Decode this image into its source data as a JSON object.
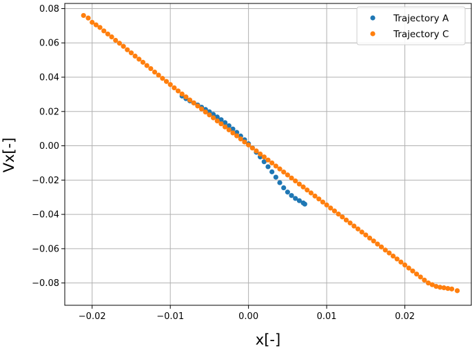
{
  "chart_data": {
    "type": "scatter",
    "xlabel": "x[-]",
    "ylabel": "Vx[-]",
    "xlim": [
      -0.0235,
      0.0285
    ],
    "ylim": [
      -0.093,
      0.083
    ],
    "x_ticks": [
      -0.02,
      -0.01,
      0.0,
      0.01,
      0.02
    ],
    "x_tick_labels": [
      "−0.02",
      "−0.01",
      "0.00",
      "0.01",
      "0.02"
    ],
    "y_ticks": [
      -0.08,
      -0.06,
      -0.04,
      -0.02,
      0.0,
      0.02,
      0.04,
      0.06,
      0.08
    ],
    "y_tick_labels": [
      "−0.08",
      "−0.06",
      "−0.04",
      "−0.02",
      "0.00",
      "0.02",
      "0.04",
      "0.06",
      "0.08"
    ],
    "grid": true,
    "legend_position": "top-right",
    "series": [
      {
        "name": "Trajectory A",
        "color": "#1f77b4",
        "points": [
          [
            -0.0085,
            0.029
          ],
          [
            -0.008,
            0.0275
          ],
          [
            -0.0075,
            0.0262
          ],
          [
            -0.007,
            0.025
          ],
          [
            -0.0065,
            0.0238
          ],
          [
            -0.006,
            0.0225
          ],
          [
            -0.0055,
            0.0212
          ],
          [
            -0.005,
            0.0198
          ],
          [
            -0.0045,
            0.0183
          ],
          [
            -0.004,
            0.0168
          ],
          [
            -0.0035,
            0.0152
          ],
          [
            -0.003,
            0.0135
          ],
          [
            -0.0025,
            0.0117
          ],
          [
            -0.002,
            0.0098
          ],
          [
            -0.0015,
            0.0078
          ],
          [
            -0.001,
            0.0057
          ],
          [
            -0.0005,
            0.0035
          ],
          [
            0.0,
            0.0012
          ],
          [
            0.0005,
            -0.0012
          ],
          [
            0.001,
            -0.0038
          ],
          [
            0.0015,
            -0.0065
          ],
          [
            0.002,
            -0.0093
          ],
          [
            0.0025,
            -0.0122
          ],
          [
            0.003,
            -0.0152
          ],
          [
            0.0035,
            -0.0183
          ],
          [
            0.004,
            -0.0215
          ],
          [
            0.0045,
            -0.0245
          ],
          [
            0.005,
            -0.027
          ],
          [
            0.0055,
            -0.029
          ],
          [
            0.006,
            -0.0307
          ],
          [
            0.0065,
            -0.032
          ],
          [
            0.007,
            -0.0333
          ],
          [
            0.0072,
            -0.034
          ]
        ]
      },
      {
        "name": "Trajectory C",
        "color": "#ff7f0e",
        "points": [
          [
            -0.0211,
            0.076
          ],
          [
            -0.0205,
            0.0745
          ],
          [
            -0.02,
            0.072
          ],
          [
            -0.0195,
            0.0705
          ],
          [
            -0.019,
            0.069
          ],
          [
            -0.0185,
            0.067
          ],
          [
            -0.018,
            0.0652
          ],
          [
            -0.0175,
            0.0635
          ],
          [
            -0.017,
            0.0615
          ],
          [
            -0.0165,
            0.0598
          ],
          [
            -0.016,
            0.058
          ],
          [
            -0.0155,
            0.056
          ],
          [
            -0.015,
            0.0542
          ],
          [
            -0.0145,
            0.0523
          ],
          [
            -0.014,
            0.0505
          ],
          [
            -0.0135,
            0.0487
          ],
          [
            -0.013,
            0.0468
          ],
          [
            -0.0125,
            0.045
          ],
          [
            -0.012,
            0.043
          ],
          [
            -0.0115,
            0.0412
          ],
          [
            -0.011,
            0.0393
          ],
          [
            -0.0105,
            0.0375
          ],
          [
            -0.01,
            0.0357
          ],
          [
            -0.0095,
            0.0338
          ],
          [
            -0.009,
            0.032
          ],
          [
            -0.0085,
            0.0302
          ],
          [
            -0.008,
            0.0285
          ],
          [
            -0.0075,
            0.0267
          ],
          [
            -0.007,
            0.025
          ],
          [
            -0.0065,
            0.0232
          ],
          [
            -0.006,
            0.0215
          ],
          [
            -0.0055,
            0.0197
          ],
          [
            -0.005,
            0.018
          ],
          [
            -0.0045,
            0.0163
          ],
          [
            -0.004,
            0.0145
          ],
          [
            -0.0035,
            0.0128
          ],
          [
            -0.003,
            0.011
          ],
          [
            -0.0025,
            0.0093
          ],
          [
            -0.002,
            0.0075
          ],
          [
            -0.0015,
            0.0058
          ],
          [
            -0.001,
            0.004
          ],
          [
            -0.0005,
            0.0022
          ],
          [
            0.0,
            0.0005
          ],
          [
            0.0005,
            -0.0013
          ],
          [
            0.001,
            -0.003
          ],
          [
            0.0015,
            -0.0048
          ],
          [
            0.002,
            -0.0065
          ],
          [
            0.0025,
            -0.0083
          ],
          [
            0.003,
            -0.01
          ],
          [
            0.0035,
            -0.0118
          ],
          [
            0.004,
            -0.0135
          ],
          [
            0.0045,
            -0.0153
          ],
          [
            0.005,
            -0.017
          ],
          [
            0.0055,
            -0.0188
          ],
          [
            0.006,
            -0.0205
          ],
          [
            0.0065,
            -0.0223
          ],
          [
            0.007,
            -0.024
          ],
          [
            0.0075,
            -0.0258
          ],
          [
            0.008,
            -0.0275
          ],
          [
            0.0085,
            -0.0293
          ],
          [
            0.009,
            -0.031
          ],
          [
            0.0095,
            -0.0328
          ],
          [
            0.01,
            -0.0345
          ],
          [
            0.0105,
            -0.0363
          ],
          [
            0.011,
            -0.038
          ],
          [
            0.0115,
            -0.0398
          ],
          [
            0.012,
            -0.0415
          ],
          [
            0.0125,
            -0.0433
          ],
          [
            0.013,
            -0.045
          ],
          [
            0.0135,
            -0.0468
          ],
          [
            0.014,
            -0.0485
          ],
          [
            0.0145,
            -0.0503
          ],
          [
            0.015,
            -0.052
          ],
          [
            0.0155,
            -0.0538
          ],
          [
            0.016,
            -0.0555
          ],
          [
            0.0165,
            -0.0573
          ],
          [
            0.017,
            -0.059
          ],
          [
            0.0175,
            -0.0608
          ],
          [
            0.018,
            -0.0625
          ],
          [
            0.0185,
            -0.0643
          ],
          [
            0.019,
            -0.066
          ],
          [
            0.0195,
            -0.0678
          ],
          [
            0.02,
            -0.0695
          ],
          [
            0.0205,
            -0.0713
          ],
          [
            0.021,
            -0.073
          ],
          [
            0.0215,
            -0.0748
          ],
          [
            0.022,
            -0.0765
          ],
          [
            0.0225,
            -0.0783
          ],
          [
            0.023,
            -0.08
          ],
          [
            0.0235,
            -0.081
          ],
          [
            0.024,
            -0.082
          ],
          [
            0.0245,
            -0.0825
          ],
          [
            0.025,
            -0.0828
          ],
          [
            0.0255,
            -0.0832
          ],
          [
            0.026,
            -0.0835
          ],
          [
            0.0267,
            -0.0845
          ]
        ]
      }
    ]
  }
}
